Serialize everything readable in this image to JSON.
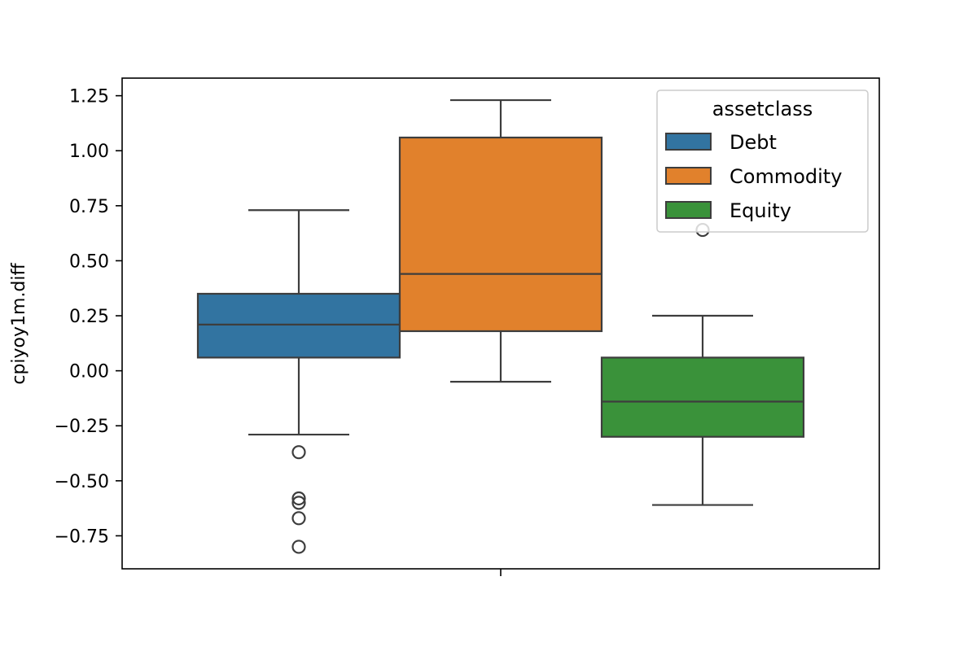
{
  "chart_data": {
    "type": "box",
    "title": "",
    "xlabel": "",
    "ylabel": "cpiyoy1m.diff",
    "ylim": [
      -0.9,
      1.33
    ],
    "yticks": [
      -0.75,
      -0.5,
      -0.25,
      0.0,
      0.25,
      0.5,
      0.75,
      1.0,
      1.25
    ],
    "ytick_labels": [
      "−0.75",
      "−0.50",
      "−0.25",
      "0.00",
      "0.25",
      "0.50",
      "0.75",
      "1.00",
      "1.25"
    ],
    "grid": false,
    "legend": {
      "title": "assetclass",
      "placement": "top-right"
    },
    "series": [
      {
        "name": "Debt",
        "color": "#3274a1",
        "whisker_low": -0.29,
        "q1": 0.06,
        "median": 0.21,
        "q3": 0.35,
        "whisker_high": 0.73,
        "outliers": [
          -0.37,
          -0.58,
          -0.6,
          -0.67,
          -0.8
        ]
      },
      {
        "name": "Commodity",
        "color": "#e1812c",
        "whisker_low": -0.05,
        "q1": 0.18,
        "median": 0.44,
        "q3": 1.06,
        "whisker_high": 1.23,
        "outliers": []
      },
      {
        "name": "Equity",
        "color": "#3a923a",
        "whisker_low": -0.61,
        "q1": -0.3,
        "median": -0.14,
        "q3": 0.06,
        "whisker_high": 0.25,
        "outliers": [
          0.64
        ]
      }
    ]
  }
}
